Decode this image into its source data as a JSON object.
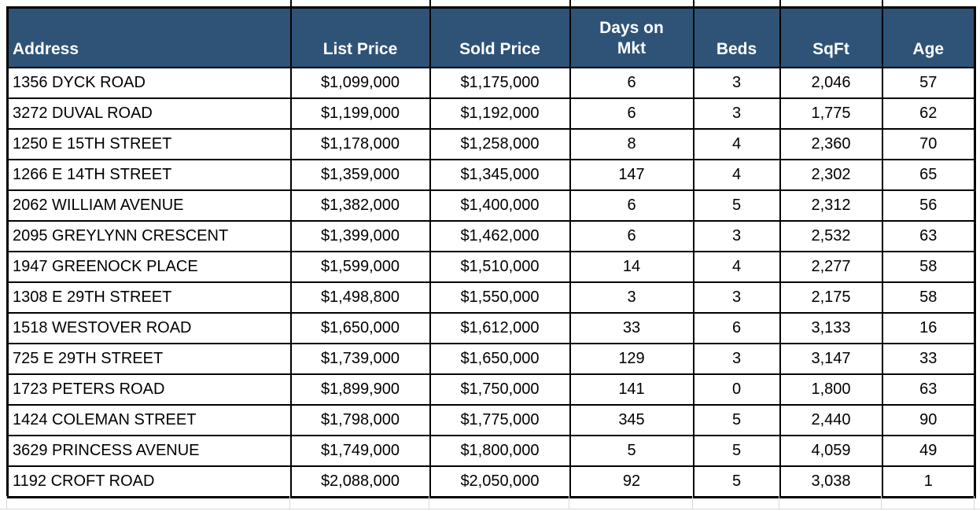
{
  "table": {
    "columns": [
      {
        "key": "address",
        "label": "Address",
        "align": "left"
      },
      {
        "key": "list_price",
        "label": "List Price",
        "align": "center"
      },
      {
        "key": "sold_price",
        "label": "Sold Price",
        "align": "center"
      },
      {
        "key": "days_on_mkt",
        "label": "Days on Mkt",
        "align": "center"
      },
      {
        "key": "beds",
        "label": "Beds",
        "align": "center"
      },
      {
        "key": "sqft",
        "label": "SqFt",
        "align": "center"
      },
      {
        "key": "age",
        "label": "Age",
        "align": "center"
      }
    ],
    "rows": [
      [
        "1356 DYCK ROAD",
        "$1,099,000",
        "$1,175,000",
        "6",
        "3",
        "2,046",
        "57"
      ],
      [
        "3272 DUVAL ROAD",
        "$1,199,000",
        "$1,192,000",
        "6",
        "3",
        "1,775",
        "62"
      ],
      [
        "1250 E 15TH STREET",
        "$1,178,000",
        "$1,258,000",
        "8",
        "4",
        "2,360",
        "70"
      ],
      [
        "1266 E 14TH STREET",
        "$1,359,000",
        "$1,345,000",
        "147",
        "4",
        "2,302",
        "65"
      ],
      [
        "2062 WILLIAM AVENUE",
        "$1,382,000",
        "$1,400,000",
        "6",
        "5",
        "2,312",
        "56"
      ],
      [
        "2095 GREYLYNN CRESCENT",
        "$1,399,000",
        "$1,462,000",
        "6",
        "3",
        "2,532",
        "63"
      ],
      [
        "1947 GREENOCK PLACE",
        "$1,599,000",
        "$1,510,000",
        "14",
        "4",
        "2,277",
        "58"
      ],
      [
        "1308 E 29TH STREET",
        "$1,498,800",
        "$1,550,000",
        "3",
        "3",
        "2,175",
        "58"
      ],
      [
        "1518 WESTOVER ROAD",
        "$1,650,000",
        "$1,612,000",
        "33",
        "6",
        "3,133",
        "16"
      ],
      [
        "725 E 29TH STREET",
        "$1,739,000",
        "$1,650,000",
        "129",
        "3",
        "3,147",
        "33"
      ],
      [
        "1723 PETERS ROAD",
        "$1,899,900",
        "$1,750,000",
        "141",
        "0",
        "1,800",
        "63"
      ],
      [
        "1424 COLEMAN STREET",
        "$1,798,000",
        "$1,775,000",
        "345",
        "5",
        "2,440",
        "90"
      ],
      [
        "3629 PRINCESS AVENUE",
        "$1,749,000",
        "$1,800,000",
        "5",
        "5",
        "4,059",
        "49"
      ],
      [
        "1192 CROFT ROAD",
        "$2,088,000",
        "$2,050,000",
        "92",
        "5",
        "3,038",
        "1"
      ]
    ]
  },
  "colors": {
    "header_bg": "#2E5377",
    "header_text": "#FFFFFF",
    "cell_text": "#000000",
    "border": "#000000",
    "gridline": "#D9D9D9"
  }
}
